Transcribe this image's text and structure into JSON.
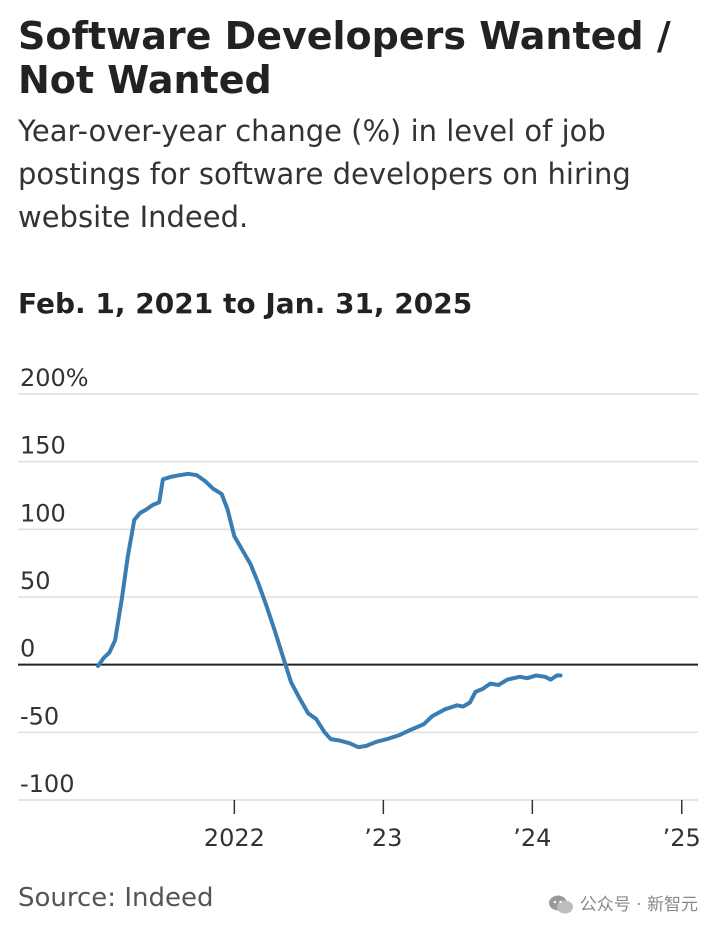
{
  "title": "Software Developers Wanted / Not Wanted",
  "subtitle": "Year-over-year change (%) in level of job postings for software developers on hiring website Indeed.",
  "date_range": "Feb. 1, 2021 to Jan. 31, 2025",
  "source": "Source: Indeed",
  "watermark": "公众号 · 新智元",
  "colors": {
    "line": "#3a7db3",
    "zero_line": "#222222",
    "grid": "#dddddd"
  },
  "chart_data": {
    "type": "line",
    "title": "Software Developers Wanted / Not Wanted",
    "xlabel": "",
    "ylabel": "",
    "ylim": [
      -100,
      200
    ],
    "yticks": [
      {
        "value": 200,
        "label": "200%"
      },
      {
        "value": 150,
        "label": "150"
      },
      {
        "value": 100,
        "label": "100"
      },
      {
        "value": 50,
        "label": "50"
      },
      {
        "value": 0,
        "label": "0"
      },
      {
        "value": -50,
        "label": "-50"
      },
      {
        "value": -100,
        "label": "-100"
      }
    ],
    "xlim": [
      "2021-02-01",
      "2025-01-31"
    ],
    "xticks": [
      {
        "value": "2022-01-01",
        "label": "2022"
      },
      {
        "value": "2023-01-01",
        "label": "’23"
      },
      {
        "value": "2024-01-01",
        "label": "’24"
      },
      {
        "value": "2025-01-01",
        "label": "’25"
      }
    ],
    "grid": true,
    "series": [
      {
        "points": [
          [
            "2021-02-01",
            -1
          ],
          [
            "2021-02-15",
            5
          ],
          [
            "2021-03-01",
            9
          ],
          [
            "2021-03-15",
            18
          ],
          [
            "2021-04-01",
            50
          ],
          [
            "2021-04-15",
            80
          ],
          [
            "2021-05-01",
            107
          ],
          [
            "2021-05-15",
            112
          ],
          [
            "2021-06-01",
            115
          ],
          [
            "2021-06-15",
            118
          ],
          [
            "2021-07-01",
            120
          ],
          [
            "2021-07-10",
            137
          ],
          [
            "2021-08-01",
            139
          ],
          [
            "2021-08-20",
            140
          ],
          [
            "2021-09-10",
            141
          ],
          [
            "2021-10-01",
            140
          ],
          [
            "2021-10-20",
            136
          ],
          [
            "2021-11-10",
            130
          ],
          [
            "2021-12-01",
            126
          ],
          [
            "2021-12-15",
            115
          ],
          [
            "2022-01-01",
            95
          ],
          [
            "2022-01-20",
            85
          ],
          [
            "2022-02-10",
            74
          ],
          [
            "2022-03-01",
            60
          ],
          [
            "2022-03-20",
            44
          ],
          [
            "2022-04-10",
            25
          ],
          [
            "2022-05-01",
            5
          ],
          [
            "2022-05-20",
            -13
          ],
          [
            "2022-06-10",
            -25
          ],
          [
            "2022-07-01",
            -36
          ],
          [
            "2022-07-20",
            -40
          ],
          [
            "2022-08-10",
            -50
          ],
          [
            "2022-08-25",
            -55
          ],
          [
            "2022-09-15",
            -56
          ],
          [
            "2022-10-10",
            -58
          ],
          [
            "2022-11-01",
            -61
          ],
          [
            "2022-11-20",
            -60
          ],
          [
            "2022-12-15",
            -57
          ],
          [
            "2023-01-10",
            -55
          ],
          [
            "2023-02-10",
            -52
          ],
          [
            "2023-03-10",
            -48
          ],
          [
            "2023-04-10",
            -44
          ],
          [
            "2023-05-01",
            -38
          ],
          [
            "2023-06-01",
            -33
          ],
          [
            "2023-07-01",
            -30
          ],
          [
            "2023-07-15",
            -31
          ],
          [
            "2023-08-01",
            -28
          ],
          [
            "2023-08-15",
            -20
          ],
          [
            "2023-09-01",
            -18
          ],
          [
            "2023-09-20",
            -14
          ],
          [
            "2023-10-10",
            -15
          ],
          [
            "2023-11-01",
            -11
          ],
          [
            "2023-12-01",
            -9
          ],
          [
            "2023-12-20",
            -10
          ],
          [
            "2024-01-10",
            -8
          ],
          [
            "2024-02-01",
            -9
          ],
          [
            "2024-02-15",
            -11
          ],
          [
            "2024-03-01",
            -8
          ],
          [
            "2024-03-10",
            -8
          ]
        ]
      }
    ]
  }
}
